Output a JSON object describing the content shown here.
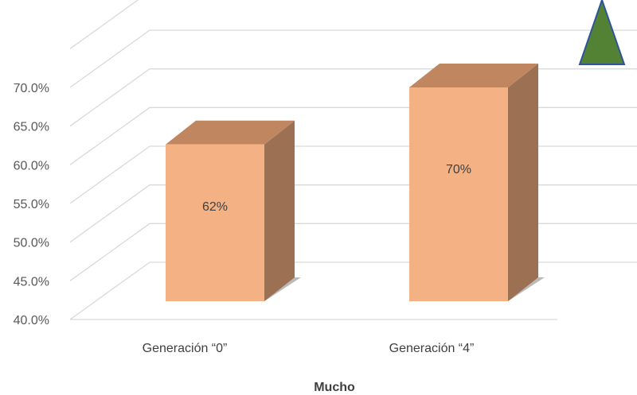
{
  "chart_data": {
    "type": "bar",
    "categories": [
      "Generación “0”",
      "Generación “4”"
    ],
    "values": [
      62,
      70
    ],
    "data_labels": [
      "62%",
      "70%"
    ],
    "xlabel": "Mucho",
    "ylabel": "",
    "ylim": [
      40,
      70
    ],
    "y_ticks": [
      "40.0%",
      "45.0%",
      "50.0%",
      "55.0%",
      "60.0%",
      "65.0%",
      "70.0%"
    ],
    "grid": true,
    "three_d": true,
    "colors": {
      "bar_front": "#F4B183",
      "bar_top": "#C0865F",
      "bar_side": "#9C7153",
      "grid": "#D9D9D9",
      "marker_fill": "#548235",
      "marker_stroke": "#2F5597"
    },
    "marker": "up-triangle-icon"
  }
}
